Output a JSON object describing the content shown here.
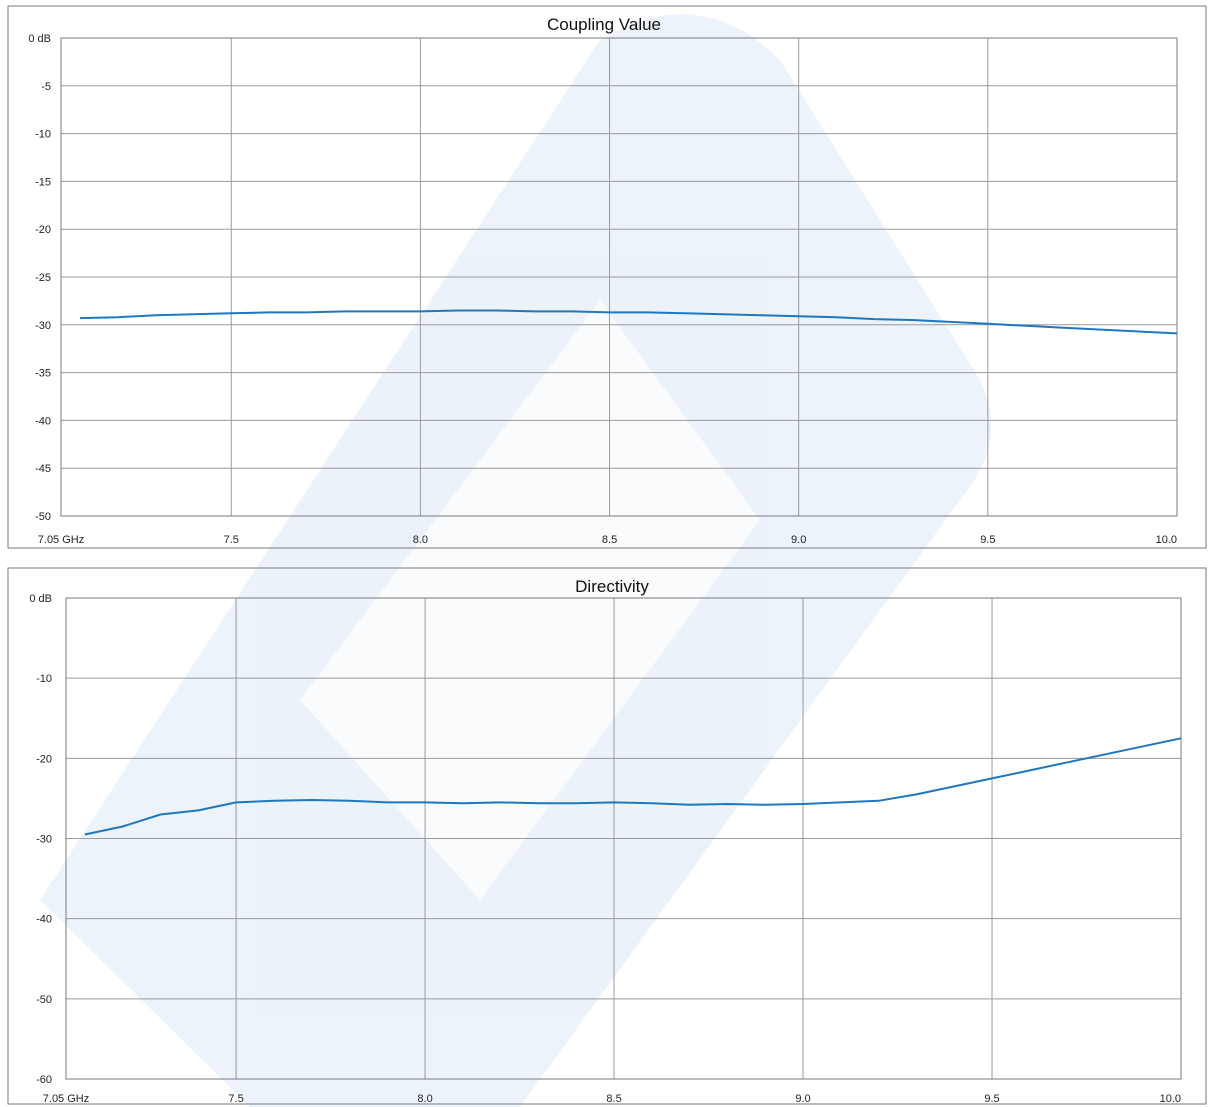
{
  "chart_data": [
    {
      "type": "line",
      "title": "Coupling Value",
      "xlabel": "",
      "ylabel": "",
      "xlim": [
        7.05,
        10.0
      ],
      "ylim": [
        -50,
        0
      ],
      "grid": true,
      "x_ticks": [
        {
          "value": 7.05,
          "label": "7.05 GHz"
        },
        {
          "value": 7.5,
          "label": "7.5"
        },
        {
          "value": 8.0,
          "label": "8.0"
        },
        {
          "value": 8.5,
          "label": "8.5"
        },
        {
          "value": 9.0,
          "label": "9.0"
        },
        {
          "value": 9.5,
          "label": "9.5"
        },
        {
          "value": 10.0,
          "label": "10.0"
        }
      ],
      "y_ticks": [
        {
          "value": 0,
          "label": "0 dB"
        },
        {
          "value": -5,
          "label": "-5"
        },
        {
          "value": -10,
          "label": "-10"
        },
        {
          "value": -15,
          "label": "-15"
        },
        {
          "value": -20,
          "label": "-20"
        },
        {
          "value": -25,
          "label": "-25"
        },
        {
          "value": -30,
          "label": "-30"
        },
        {
          "value": -35,
          "label": "-35"
        },
        {
          "value": -40,
          "label": "-40"
        },
        {
          "value": -45,
          "label": "-45"
        },
        {
          "value": -50,
          "label": "-50"
        }
      ],
      "series": [
        {
          "color": "#1f77c0",
          "x": [
            7.1,
            7.2,
            7.3,
            7.4,
            7.5,
            7.6,
            7.7,
            7.8,
            7.9,
            8.0,
            8.1,
            8.2,
            8.3,
            8.4,
            8.5,
            8.6,
            8.7,
            8.8,
            8.9,
            9.0,
            9.1,
            9.2,
            9.3,
            9.4,
            9.5,
            9.6,
            9.7,
            9.8,
            9.9,
            10.0
          ],
          "y": [
            -29.3,
            -29.2,
            -29.0,
            -28.9,
            -28.8,
            -28.7,
            -28.7,
            -28.6,
            -28.6,
            -28.6,
            -28.5,
            -28.5,
            -28.6,
            -28.6,
            -28.7,
            -28.7,
            -28.8,
            -28.9,
            -29.0,
            -29.1,
            -29.2,
            -29.4,
            -29.5,
            -29.7,
            -29.9,
            -30.1,
            -30.3,
            -30.5,
            -30.7,
            -30.9
          ]
        }
      ]
    },
    {
      "type": "line",
      "title": "Directivity",
      "xlabel": "",
      "ylabel": "",
      "xlim": [
        7.05,
        10.0
      ],
      "ylim": [
        -60,
        0
      ],
      "grid": true,
      "x_ticks": [
        {
          "value": 7.05,
          "label": "7.05 GHz"
        },
        {
          "value": 7.5,
          "label": "7.5"
        },
        {
          "value": 8.0,
          "label": "8.0"
        },
        {
          "value": 8.5,
          "label": "8.5"
        },
        {
          "value": 9.0,
          "label": "9.0"
        },
        {
          "value": 9.5,
          "label": "9.5"
        },
        {
          "value": 10.0,
          "label": "10.0"
        }
      ],
      "y_ticks": [
        {
          "value": 0,
          "label": "0 dB"
        },
        {
          "value": -10,
          "label": "-10"
        },
        {
          "value": -20,
          "label": "-20"
        },
        {
          "value": -30,
          "label": "-30"
        },
        {
          "value": -40,
          "label": "-40"
        },
        {
          "value": -50,
          "label": "-50"
        },
        {
          "value": -60,
          "label": "-60"
        }
      ],
      "series": [
        {
          "color": "#1f77c0",
          "x": [
            7.1,
            7.2,
            7.3,
            7.4,
            7.5,
            7.6,
            7.7,
            7.8,
            7.9,
            8.0,
            8.1,
            8.2,
            8.3,
            8.4,
            8.5,
            8.6,
            8.7,
            8.8,
            8.9,
            9.0,
            9.1,
            9.2,
            9.3,
            9.4,
            9.5,
            9.6,
            9.7,
            9.8,
            9.9,
            10.0
          ],
          "y": [
            -29.5,
            -28.5,
            -27.0,
            -26.5,
            -25.5,
            -25.3,
            -25.2,
            -25.3,
            -25.5,
            -25.5,
            -25.6,
            -25.5,
            -25.6,
            -25.6,
            -25.5,
            -25.6,
            -25.8,
            -25.7,
            -25.8,
            -25.7,
            -25.5,
            -25.3,
            -24.5,
            -23.5,
            -22.5,
            -21.5,
            -20.5,
            -19.5,
            -18.5,
            -17.5
          ]
        }
      ]
    }
  ]
}
